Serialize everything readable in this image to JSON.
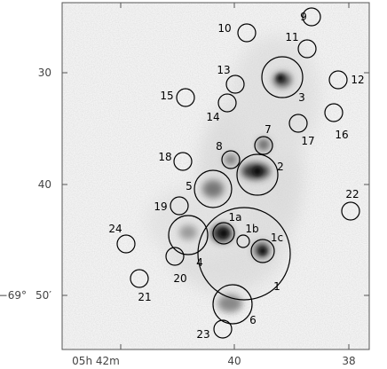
{
  "figure": {
    "y_ticks": [
      {
        "label": "30"
      },
      {
        "label": "40"
      },
      {
        "label": "−69°",
        "sub": "50′"
      }
    ],
    "x_ticks": [
      {
        "label": "05h 42m"
      },
      {
        "label": "40"
      },
      {
        "label": "38"
      }
    ],
    "regions": [
      {
        "id": "1",
        "label": "1"
      },
      {
        "id": "1a",
        "label": "1a"
      },
      {
        "id": "1b",
        "label": "1b"
      },
      {
        "id": "1c",
        "label": "1c"
      },
      {
        "id": "2",
        "label": "2"
      },
      {
        "id": "3",
        "label": "3"
      },
      {
        "id": "4",
        "label": "4"
      },
      {
        "id": "5",
        "label": "5"
      },
      {
        "id": "6",
        "label": "6"
      },
      {
        "id": "7",
        "label": "7"
      },
      {
        "id": "8",
        "label": "8"
      },
      {
        "id": "9",
        "label": "9"
      },
      {
        "id": "10",
        "label": "10"
      },
      {
        "id": "11",
        "label": "11"
      },
      {
        "id": "12",
        "label": "12"
      },
      {
        "id": "13",
        "label": "13"
      },
      {
        "id": "14",
        "label": "14"
      },
      {
        "id": "15",
        "label": "15"
      },
      {
        "id": "16",
        "label": "16"
      },
      {
        "id": "17",
        "label": "17"
      },
      {
        "id": "18",
        "label": "18"
      },
      {
        "id": "19",
        "label": "19"
      },
      {
        "id": "20",
        "label": "20"
      },
      {
        "id": "21",
        "label": "21"
      },
      {
        "id": "22",
        "label": "22"
      },
      {
        "id": "23",
        "label": "23"
      },
      {
        "id": "24",
        "label": "24"
      }
    ]
  }
}
